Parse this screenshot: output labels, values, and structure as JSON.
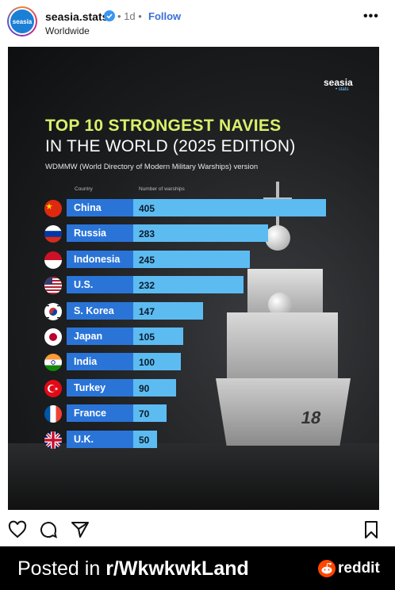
{
  "header": {
    "avatar_text": "seasia",
    "username": "seasia.stats",
    "time": "• 1d •",
    "follow": "Follow",
    "location": "Worldwide",
    "more": "•••"
  },
  "post": {
    "brand": "seasia",
    "brand_sub": "• stats",
    "title_line1": "TOP 10 STRONGEST NAVIES",
    "title_line2": "IN THE WORLD (2025 EDITION)",
    "subtitle": "WDMMW (World Directory of Modern Military Warships) version",
    "col_country": "Country",
    "col_number": "Number of warships",
    "bow_number": "18"
  },
  "chart_data": {
    "type": "bar",
    "title": "TOP 10 STRONGEST NAVIES IN THE WORLD (2025 EDITION)",
    "xlabel": "Country",
    "ylabel": "Number of warships",
    "categories": [
      "China",
      "Russia",
      "Indonesia",
      "U.S.",
      "S. Korea",
      "Japan",
      "India",
      "Turkey",
      "France",
      "U.K."
    ],
    "values": [
      405,
      283,
      245,
      232,
      147,
      105,
      100,
      90,
      70,
      50
    ],
    "orientation": "horizontal",
    "bar_color": "#5cbcf2"
  },
  "actions": {
    "like": "heart-icon",
    "comment": "comment-icon",
    "share": "send-icon",
    "save": "bookmark-icon"
  },
  "footer": {
    "posted_prefix": "Posted in ",
    "subreddit": "r/WkwkwkLand",
    "reddit": "reddit"
  }
}
